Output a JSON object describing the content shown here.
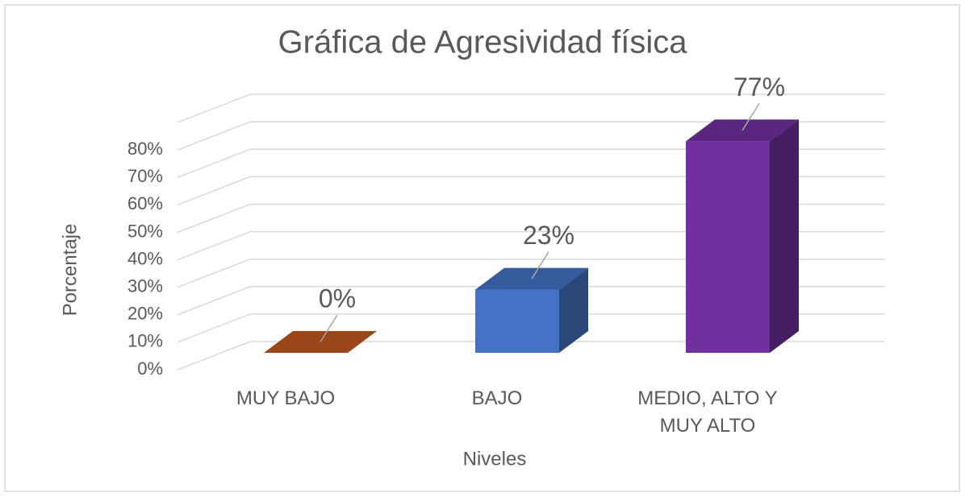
{
  "chart_data": {
    "type": "bar3d",
    "title": "Gráfica de Agresividad física",
    "x_label": "Niveles",
    "y_label": "Porcentaje",
    "categories": [
      "MUY BAJO",
      "BAJO",
      "MEDIO, ALTO Y MUY ALTO"
    ],
    "values": [
      0,
      23,
      77
    ],
    "value_labels": [
      "0%",
      "23%",
      "77%"
    ],
    "colors": [
      "#c0581f",
      "#4472c4",
      "#7030a0"
    ],
    "ylim": [
      0,
      90
    ],
    "yticks": [
      {
        "value": 0,
        "label": "0%"
      },
      {
        "value": 10,
        "label": "10%"
      },
      {
        "value": 20,
        "label": "20%"
      },
      {
        "value": 30,
        "label": "30%"
      },
      {
        "value": 40,
        "label": "40%"
      },
      {
        "value": 50,
        "label": "50%"
      },
      {
        "value": 60,
        "label": "60%"
      },
      {
        "value": 70,
        "label": "70%"
      },
      {
        "value": 80,
        "label": "80%"
      }
    ],
    "grid": true
  }
}
